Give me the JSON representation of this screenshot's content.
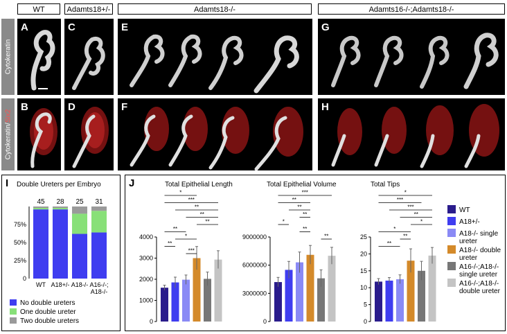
{
  "headers": {
    "wt": "WT",
    "het": "Adamts18+/-",
    "ko": "Adamts18-/-",
    "dko": "Adamts16-/-;Adamts18-/-"
  },
  "row_labels": {
    "top": "Cytokeratin",
    "bottom_a": "Cytokeratin/",
    "bottom_b": "Six2"
  },
  "panel_letters": [
    "A",
    "B",
    "C",
    "D",
    "E",
    "F",
    "G",
    "H"
  ],
  "colors": {
    "blue_dark": "#2a1c8c",
    "blue": "#3f3df0",
    "blue_light": "#8a8af5",
    "orange": "#d48a2a",
    "grey_dark": "#777777",
    "grey_light": "#c4c4c4",
    "green": "#88e078",
    "six2_red": "#c81e1e"
  },
  "chart_data": [
    {
      "type": "bar",
      "panel": "I",
      "title": "Double Ureters per Embryo",
      "stacked": true,
      "categories": [
        "WT",
        "A18+/-",
        "A18-/-",
        "A16-/-;\nA18-/-"
      ],
      "counts": [
        "45",
        "28",
        "25",
        "31"
      ],
      "series": [
        {
          "name": "No double ureters",
          "color": "#3f3df0",
          "values": [
            96,
            96,
            62,
            64
          ]
        },
        {
          "name": "One double ureter",
          "color": "#88e078",
          "values": [
            2,
            2,
            28,
            30
          ]
        },
        {
          "name": "Two double ureters",
          "color": "#9a9a9a",
          "values": [
            2,
            2,
            10,
            6
          ]
        }
      ],
      "yticks": [
        "75%",
        "50%",
        "25%",
        "0"
      ],
      "ylim": [
        0,
        100
      ]
    },
    {
      "type": "bar",
      "panel": "J",
      "title": "Total Epithelial Length",
      "categories": [
        "WT",
        "A18+/-",
        "A18-/- single ureter",
        "A18-/- double ureter",
        "A16-/-;A18-/- single ureter",
        "A16-/-;A18-/- double ureter"
      ],
      "values": [
        1600,
        1850,
        1980,
        3000,
        2020,
        2930
      ],
      "errors": [
        120,
        250,
        220,
        550,
        320,
        420
      ],
      "ylim": [
        0,
        4000
      ],
      "yticks": [
        "0",
        "1000",
        "2000",
        "3000",
        "4000"
      ],
      "significance": [
        [
          "*"
        ],
        [
          "***"
        ],
        [
          "**"
        ],
        [
          "**"
        ],
        [
          "**"
        ],
        [
          "**"
        ],
        [
          "*"
        ],
        [
          "**"
        ],
        [
          "***"
        ]
      ]
    },
    {
      "type": "bar",
      "panel": "J",
      "title": "Total Epithelial Volume",
      "categories": [
        "WT",
        "A18+/-",
        "A18-/- single ureter",
        "A18-/- double ureter",
        "A16-/-;A18-/- single ureter",
        "A16-/-;A18-/- double ureter"
      ],
      "values": [
        4200000,
        5500000,
        6300000,
        7100000,
        4600000,
        7000000
      ],
      "errors": [
        500000,
        900000,
        1100000,
        1000000,
        900000,
        900000
      ],
      "ylim": [
        0,
        9000000
      ],
      "yticks": [
        "0",
        "3000000",
        "6000000",
        "9000000"
      ],
      "significance": [
        [
          "***"
        ],
        [
          "**"
        ],
        [
          "**"
        ],
        [
          "**"
        ],
        [
          "*"
        ],
        [
          "**"
        ],
        [
          "**"
        ],
        [
          "***"
        ]
      ]
    },
    {
      "type": "bar",
      "panel": "J",
      "title": "Total Tips",
      "categories": [
        "WT",
        "A18+/-",
        "A18-/- single ureter",
        "A18-/- double ureter",
        "A16-/-;A18-/- single ureter",
        "A16-/-;A18-/- double ureter"
      ],
      "values": [
        11.8,
        12.1,
        12.5,
        18,
        15,
        19.5
      ],
      "errors": [
        0.9,
        0.9,
        1.3,
        3.5,
        2.8,
        2.4
      ],
      "ylim": [
        0,
        25
      ],
      "yticks": [
        "0",
        "5",
        "10",
        "15",
        "20",
        "25"
      ],
      "significance": [
        [
          "*"
        ],
        [
          "***"
        ],
        [
          "***"
        ],
        [
          "**"
        ],
        [
          "*"
        ],
        [
          "*"
        ],
        [
          "**"
        ],
        [
          "**"
        ]
      ]
    }
  ],
  "legend_j": [
    "WT",
    "A18+/-",
    "A18-/- single ureter",
    "A18-/- double ureter",
    "A16-/-;A18-/- single ureter",
    "A16-/-;A18-/- double ureter"
  ],
  "labels": {
    "i": "I",
    "j": "J"
  }
}
